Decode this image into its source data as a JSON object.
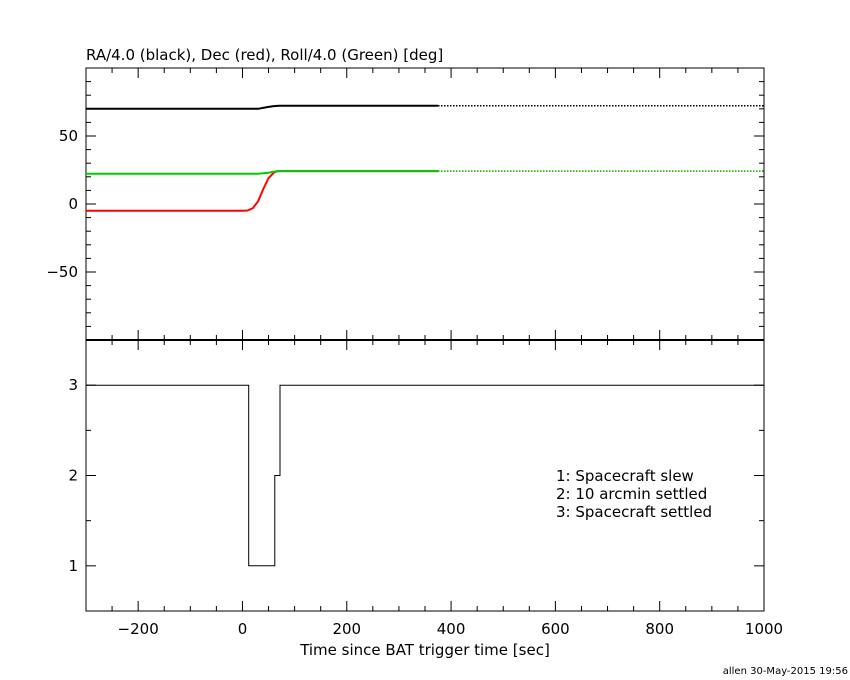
{
  "chart_data": [
    {
      "type": "line",
      "title": "RA/4.0 (black), Dec (red), Roll/4.0 (Green) [deg]",
      "xlim": [
        -300,
        1000
      ],
      "ylim": [
        -100,
        100
      ],
      "yticks": [
        -50,
        0,
        50
      ],
      "grid": false,
      "series": [
        {
          "name": "RA/4.0 (black)",
          "color": "#000000",
          "x": [
            -300,
            -200,
            -100,
            0,
            30,
            50,
            60,
            70,
            100,
            200,
            300,
            375
          ],
          "y": [
            70.0,
            70.0,
            70.0,
            70.0,
            70.0,
            71.4,
            72.0,
            72.3,
            72.3,
            72.3,
            72.3,
            72.3
          ],
          "x_dotted": [
            375,
            1000
          ],
          "y_dotted": [
            72.3,
            72.3
          ]
        },
        {
          "name": "Dec (red)",
          "color": "#ff0000",
          "x": [
            -300,
            -200,
            -100,
            0,
            10,
            20,
            30,
            40,
            50,
            60,
            65,
            70,
            100,
            200,
            300,
            375
          ],
          "y": [
            -5.0,
            -5.0,
            -5.0,
            -5.0,
            -4.8,
            -3.0,
            2.0,
            11.0,
            19.0,
            23.0,
            24.0,
            24.2,
            24.2,
            24.2,
            24.2,
            24.2
          ],
          "x_dotted": [
            375,
            1000
          ],
          "y_dotted": [
            24.2,
            24.2
          ]
        },
        {
          "name": "Roll/4.0 (Green)",
          "color": "#00cc00",
          "x": [
            -300,
            -200,
            -100,
            0,
            30,
            50,
            60,
            70,
            100,
            200,
            300,
            375
          ],
          "y": [
            22.2,
            22.2,
            22.2,
            22.2,
            22.2,
            23.0,
            23.8,
            24.2,
            24.2,
            24.2,
            24.2,
            24.2
          ],
          "x_dotted": [
            375,
            1000
          ],
          "y_dotted": [
            24.2,
            24.2
          ]
        }
      ]
    },
    {
      "type": "line",
      "xlabel": "Time since BAT trigger time [sec]",
      "xlim": [
        -300,
        1000
      ],
      "ylim": [
        0.5,
        3.5
      ],
      "xticks": [
        -200,
        0,
        200,
        400,
        600,
        800,
        1000
      ],
      "yticks": [
        1,
        2,
        3
      ],
      "grid": false,
      "legend_placement": "right",
      "annotations": [
        "1: Spacecraft slew",
        "2: 10 arcmin settled",
        "3: Spacecraft settled"
      ],
      "series": [
        {
          "color": "#000000",
          "step": true,
          "x": [
            -300,
            12,
            12,
            62,
            62,
            72,
            72,
            1000
          ],
          "y": [
            3,
            3,
            1,
            1,
            2,
            2,
            3,
            3
          ]
        }
      ]
    }
  ],
  "footer": "allen 30-May-2015 19:56"
}
